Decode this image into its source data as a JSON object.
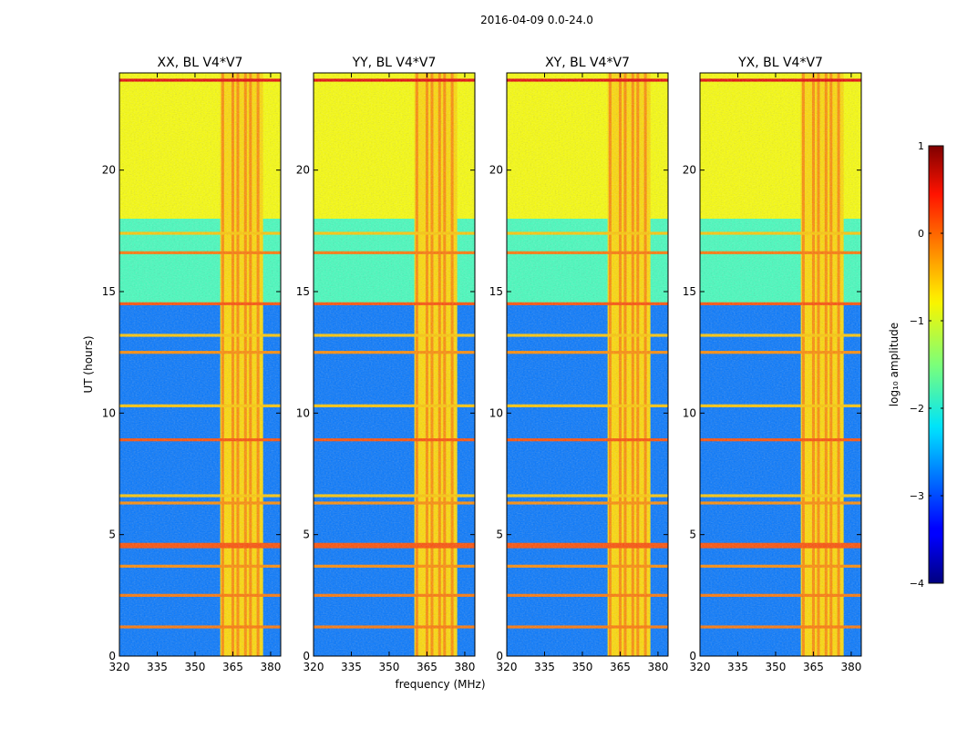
{
  "figure": {
    "suptitle": "2016-04-09 0.0-24.0",
    "xlabel": "frequency (MHz)",
    "ylabel": "UT (hours)"
  },
  "chart_data": {
    "type": "heatmap",
    "title": "2016-04-09 0.0-24.0",
    "xlabel": "frequency (MHz)",
    "ylabel": "UT (hours)",
    "xlim": [
      320,
      384
    ],
    "ylim": [
      0,
      24
    ],
    "x_ticks": [
      320,
      335,
      350,
      365,
      380
    ],
    "y_ticks": [
      0,
      5,
      10,
      15,
      20
    ],
    "panels": [
      {
        "title": "XX, BL V4*V7",
        "polarization": "XX"
      },
      {
        "title": "YY, BL V4*V7",
        "polarization": "YY"
      },
      {
        "title": "XY, BL V4*V7",
        "polarization": "XY"
      },
      {
        "title": "YX, BL V4*V7",
        "polarization": "YX"
      }
    ],
    "rfi_frequency_range_mhz": [
      360,
      377
    ],
    "rfi_channel_columns_mhz": [
      361,
      365,
      367,
      370,
      372,
      375
    ],
    "rfi_hour_bands": [
      {
        "hour": 1.2,
        "level": -0.2
      },
      {
        "hour": 2.5,
        "level": -0.2
      },
      {
        "hour": 3.7,
        "level": -0.3
      },
      {
        "hour": 4.5,
        "level": 0.0
      },
      {
        "hour": 4.6,
        "level": 0.0
      },
      {
        "hour": 6.3,
        "level": -0.3
      },
      {
        "hour": 6.6,
        "level": -0.6
      },
      {
        "hour": 8.9,
        "level": 0.0
      },
      {
        "hour": 10.3,
        "level": -0.6
      },
      {
        "hour": 12.5,
        "level": -0.3
      },
      {
        "hour": 13.2,
        "level": -0.6
      },
      {
        "hour": 14.5,
        "level": 0.0
      },
      {
        "hour": 16.6,
        "level": -0.2
      },
      {
        "hour": 17.4,
        "level": -0.6
      },
      {
        "hour": 23.7,
        "level": 0.5
      }
    ],
    "background_levels": [
      {
        "hours": [
          0,
          14.5
        ],
        "level": -2.8
      },
      {
        "hours": [
          14.5,
          18.0
        ],
        "level": -1.8
      },
      {
        "hours": [
          18.0,
          24.0
        ],
        "level": -0.9
      }
    ],
    "colorbar": {
      "label": "log₁₀ amplitude",
      "min": -4,
      "max": 1,
      "ticks": [
        1,
        0,
        -1,
        -2,
        -3,
        -4
      ],
      "colormap": "jet"
    }
  },
  "tick_labels": {
    "x": [
      "320",
      "335",
      "350",
      "365",
      "380"
    ],
    "y": [
      "0",
      "5",
      "10",
      "15",
      "20"
    ],
    "colorbar": [
      "1",
      "0",
      "−1",
      "−2",
      "−3",
      "−4"
    ]
  }
}
